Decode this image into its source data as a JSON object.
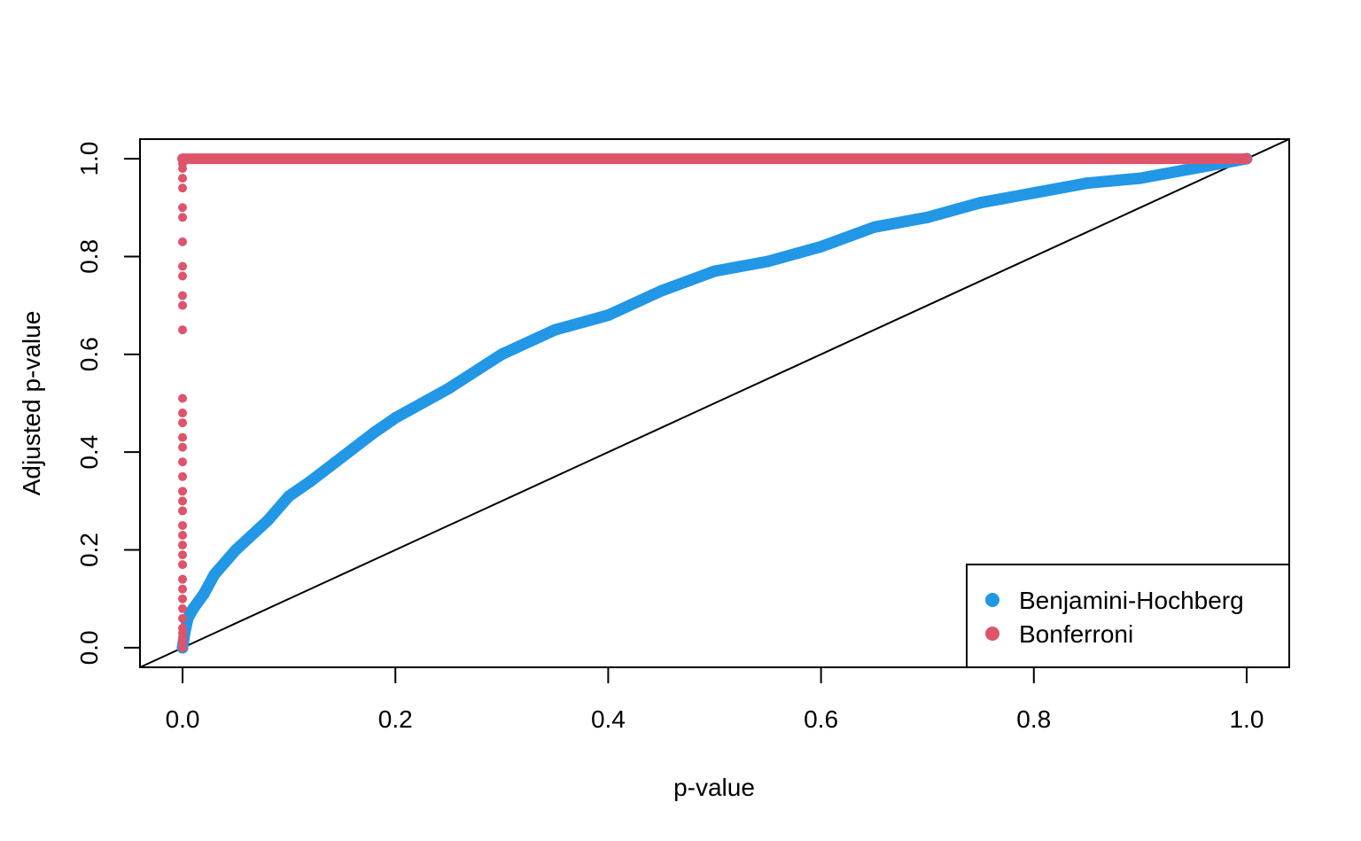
{
  "chart_data": {
    "type": "scatter",
    "xlabel": "p-value",
    "ylabel": "Adjusted p-value",
    "xlim": [
      -0.04,
      1.04
    ],
    "ylim": [
      -0.04,
      1.04
    ],
    "x_ticks": [
      0.0,
      0.2,
      0.4,
      0.6,
      0.8,
      1.0
    ],
    "x_tick_labels": [
      "0.0",
      "0.2",
      "0.4",
      "0.6",
      "0.8",
      "1.0"
    ],
    "y_ticks": [
      0.0,
      0.2,
      0.4,
      0.6,
      0.8,
      1.0
    ],
    "y_tick_labels": [
      "0.0",
      "0.2",
      "0.4",
      "0.6",
      "0.8",
      "1.0"
    ],
    "grid": false,
    "legend_position": "bottom-right",
    "reference_line": {
      "type": "identity",
      "from": [
        -0.04,
        -0.04
      ],
      "to": [
        1.04,
        1.04
      ],
      "color": "#000000"
    },
    "series": [
      {
        "name": "Benjamini-Hochberg",
        "color": "#2297E6",
        "curve_points": [
          [
            0.0,
            0.0
          ],
          [
            0.002,
            0.03
          ],
          [
            0.005,
            0.06
          ],
          [
            0.01,
            0.08
          ],
          [
            0.02,
            0.11
          ],
          [
            0.03,
            0.15
          ],
          [
            0.05,
            0.2
          ],
          [
            0.08,
            0.26
          ],
          [
            0.1,
            0.31
          ],
          [
            0.12,
            0.34
          ],
          [
            0.15,
            0.39
          ],
          [
            0.18,
            0.44
          ],
          [
            0.2,
            0.47
          ],
          [
            0.25,
            0.53
          ],
          [
            0.3,
            0.6
          ],
          [
            0.35,
            0.65
          ],
          [
            0.4,
            0.68
          ],
          [
            0.45,
            0.73
          ],
          [
            0.5,
            0.77
          ],
          [
            0.55,
            0.79
          ],
          [
            0.6,
            0.82
          ],
          [
            0.65,
            0.86
          ],
          [
            0.7,
            0.88
          ],
          [
            0.75,
            0.91
          ],
          [
            0.8,
            0.93
          ],
          [
            0.85,
            0.95
          ],
          [
            0.9,
            0.96
          ],
          [
            0.95,
            0.98
          ],
          [
            1.0,
            1.0
          ]
        ]
      },
      {
        "name": "Bonferroni",
        "color": "#DF536B",
        "vertical_points": {
          "x": 0.0,
          "y": [
            0.0,
            0.01,
            0.02,
            0.03,
            0.04,
            0.06,
            0.08,
            0.1,
            0.12,
            0.14,
            0.17,
            0.19,
            0.21,
            0.23,
            0.25,
            0.28,
            0.3,
            0.32,
            0.35,
            0.38,
            0.41,
            0.43,
            0.46,
            0.48,
            0.51,
            0.65,
            0.7,
            0.72,
            0.76,
            0.78,
            0.83,
            0.88,
            0.9,
            0.94,
            0.96,
            0.98,
            0.99,
            1.0
          ]
        },
        "plateau": {
          "from": 0.0,
          "to": 1.0,
          "y": 1.0
        }
      }
    ]
  }
}
